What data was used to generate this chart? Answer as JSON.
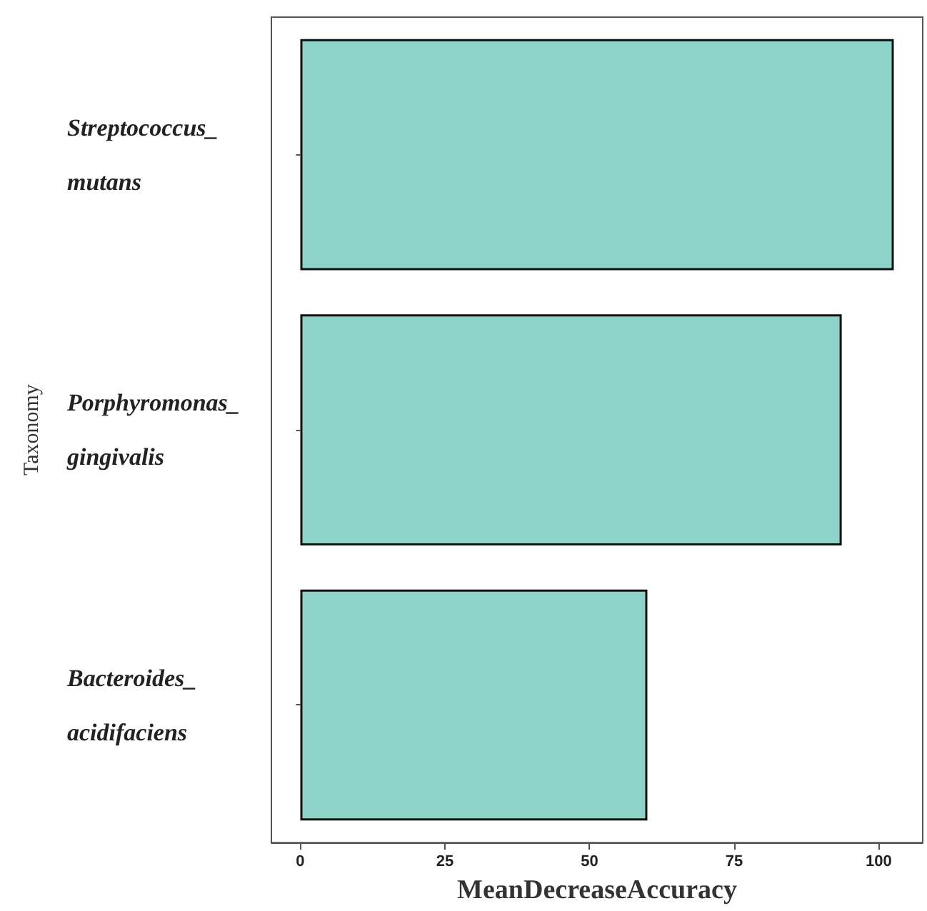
{
  "chart_data": {
    "type": "bar",
    "orientation": "horizontal",
    "xlabel": "MeanDecreaseAccuracy",
    "ylabel": "Taxonomy",
    "categories": [
      "Streptococcus_mutans",
      "Porphyromonas_gingivalis",
      "Bacteroides_acidifaciens"
    ],
    "values": [
      102.6,
      93.6,
      60.0
    ],
    "color": "#8dd3c7",
    "xlim": [
      -5,
      107.6
    ],
    "xticks": [
      0,
      25,
      50,
      75,
      100
    ],
    "grid": false
  }
}
